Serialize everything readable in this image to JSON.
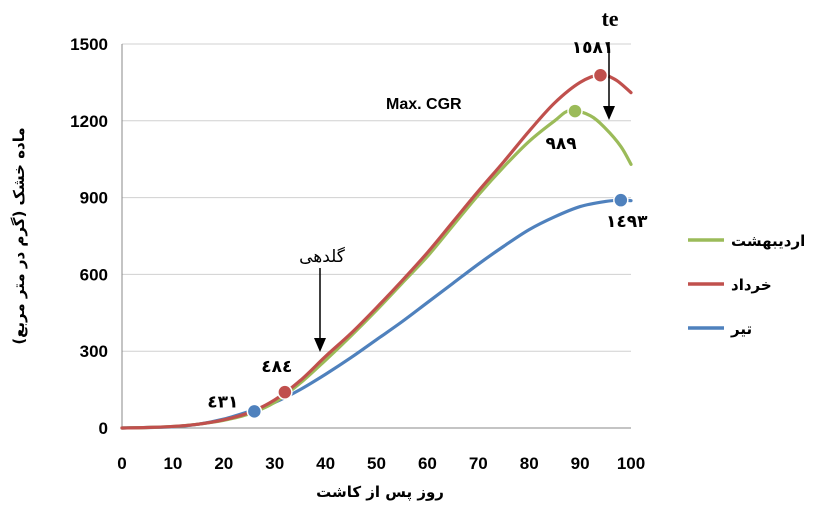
{
  "chart_data": {
    "type": "line",
    "xlabel": "روز پس از کاشت",
    "ylabel": "ماده خشک (گرم در متر مربع)",
    "xlim": [
      0,
      100
    ],
    "ylim": [
      0,
      1500
    ],
    "x_ticks": [
      "0",
      "10",
      "20",
      "30",
      "40",
      "50",
      "60",
      "70",
      "80",
      "90",
      "100"
    ],
    "y_ticks": [
      "0",
      "300",
      "600",
      "900",
      "1200",
      "1500"
    ],
    "grid": "horizontal",
    "legend_position": "right",
    "series": [
      {
        "name": "اردیبهشت",
        "color": "#9BBB59",
        "x": [
          0,
          5,
          10,
          15,
          20,
          25,
          30,
          35,
          40,
          45,
          50,
          55,
          60,
          65,
          70,
          75,
          80,
          85,
          88,
          92,
          95,
          98,
          100
        ],
        "y": [
          0,
          2,
          6,
          15,
          30,
          55,
          100,
          175,
          265,
          360,
          460,
          565,
          670,
          790,
          910,
          1020,
          1120,
          1200,
          1240,
          1220,
          1170,
          1100,
          1030
        ]
      },
      {
        "name": "خرداد",
        "color": "#C0504D",
        "x": [
          0,
          5,
          10,
          15,
          20,
          25,
          30,
          35,
          40,
          45,
          50,
          55,
          60,
          65,
          70,
          75,
          80,
          85,
          90,
          94,
          97,
          100
        ],
        "y": [
          0,
          2,
          6,
          15,
          32,
          60,
          110,
          185,
          280,
          370,
          470,
          575,
          685,
          805,
          925,
          1040,
          1160,
          1270,
          1350,
          1380,
          1360,
          1310
        ]
      },
      {
        "name": "تیر",
        "color": "#4F81BD",
        "x": [
          0,
          5,
          10,
          15,
          20,
          25,
          30,
          35,
          40,
          45,
          50,
          55,
          60,
          65,
          70,
          75,
          80,
          85,
          90,
          95,
          98,
          100
        ],
        "y": [
          0,
          2,
          5,
          15,
          35,
          65,
          100,
          150,
          210,
          275,
          345,
          415,
          490,
          565,
          640,
          710,
          775,
          825,
          865,
          885,
          890,
          888
        ]
      }
    ],
    "markers": [
      {
        "series": "تیر",
        "x": 26,
        "y": 65,
        "label": "٤٣١"
      },
      {
        "series": "خرداد",
        "x": 32,
        "y": 140,
        "label": "٤٨٤"
      },
      {
        "series": "اردیبهشت",
        "x": 89,
        "y": 1238,
        "label": "٩٨٩"
      },
      {
        "series": "خرداد",
        "x": 94,
        "y": 1378,
        "label": "١٥٨١"
      },
      {
        "series": "تیر",
        "x": 98,
        "y": 890,
        "label": "١٤٩٣"
      }
    ],
    "annotations": {
      "flowering": "گلدهی",
      "max_cgr": "Max. CGR",
      "te": "te"
    }
  }
}
